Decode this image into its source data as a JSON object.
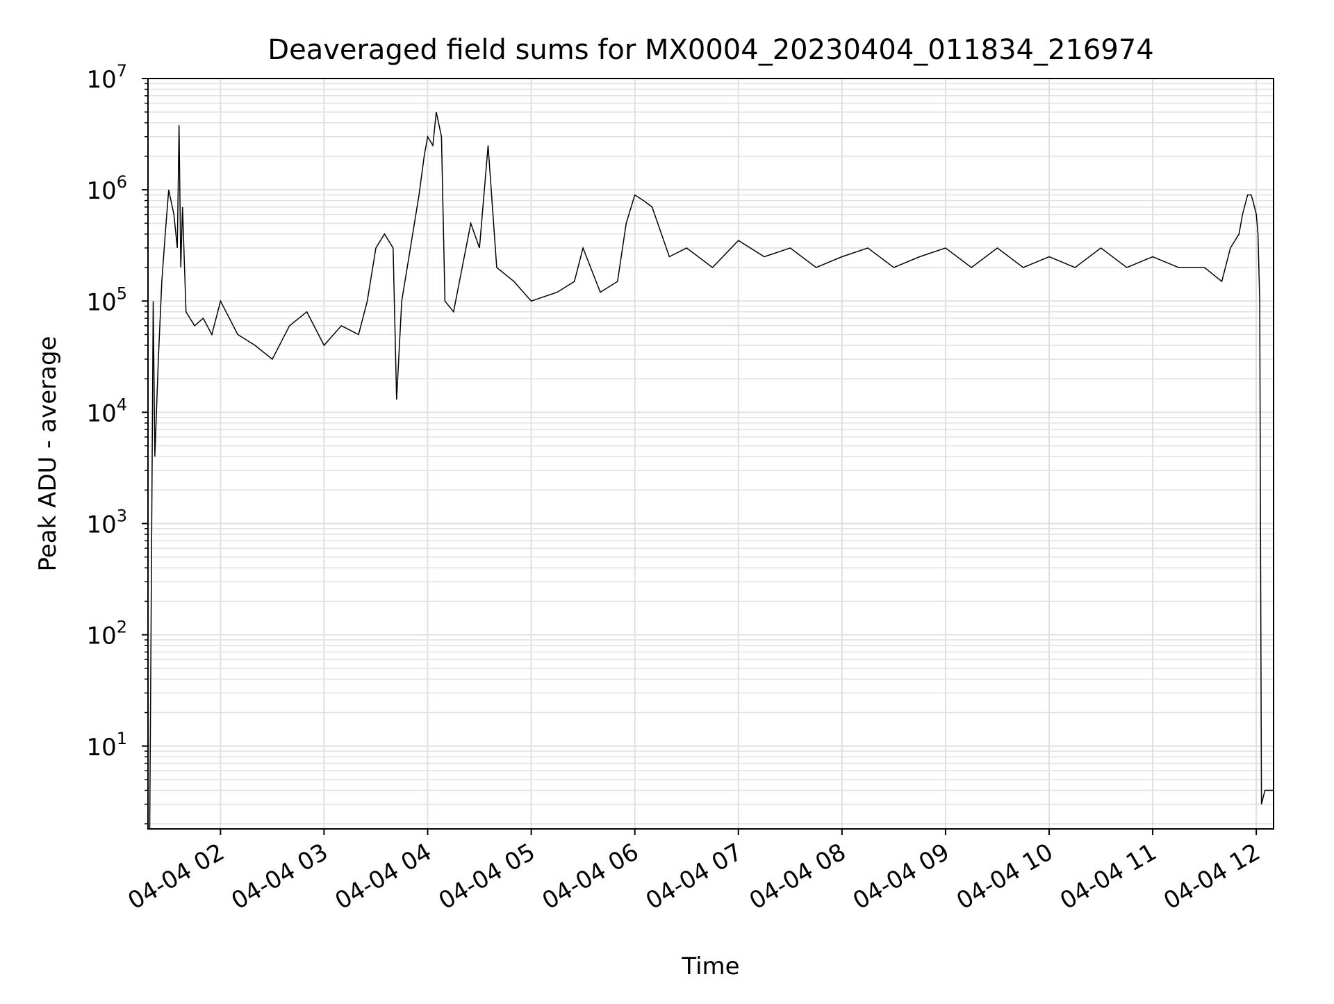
{
  "chart_data": {
    "type": "line",
    "title": "Deaveraged field sums for MX0004_20230404_011834_216974",
    "xlabel": "Time",
    "ylabel": "Peak ADU - average",
    "yscale": "log",
    "ylim": [
      1.8,
      10000000
    ],
    "xlim": [
      "2023-04-04 01:18",
      "2023-04-04 12:10"
    ],
    "x_ticks": [
      "04-04 02",
      "04-04 03",
      "04-04 04",
      "04-04 05",
      "04-04 06",
      "04-04 07",
      "04-04 08",
      "04-04 09",
      "04-04 10",
      "04-04 11",
      "04-04 12"
    ],
    "y_ticks": [
      {
        "value": 10,
        "base": "10",
        "exp": "1"
      },
      {
        "value": 100,
        "base": "10",
        "exp": "2"
      },
      {
        "value": 1000,
        "base": "10",
        "exp": "3"
      },
      {
        "value": 10000,
        "base": "10",
        "exp": "4"
      },
      {
        "value": 100000,
        "base": "10",
        "exp": "5"
      },
      {
        "value": 1000000,
        "base": "10",
        "exp": "6"
      },
      {
        "value": 10000000,
        "base": "10",
        "exp": "7"
      }
    ],
    "grid": true,
    "line_color": "#000000",
    "grid_color": "#e0e0e0",
    "series": [
      {
        "x": [
          "2023-04-04 01:19",
          "2023-04-04 01:21",
          "2023-04-04 01:22",
          "2023-04-04 01:24",
          "2023-04-04 01:26",
          "2023-04-04 01:28",
          "2023-04-04 01:30",
          "2023-04-04 01:33",
          "2023-04-04 01:35",
          "2023-04-04 01:36",
          "2023-04-04 01:37",
          "2023-04-04 01:38",
          "2023-04-04 01:40",
          "2023-04-04 01:45",
          "2023-04-04 01:50",
          "2023-04-04 01:55",
          "2023-04-04 02:00",
          "2023-04-04 02:10",
          "2023-04-04 02:20",
          "2023-04-04 02:30",
          "2023-04-04 02:40",
          "2023-04-04 02:50",
          "2023-04-04 03:00",
          "2023-04-04 03:10",
          "2023-04-04 03:20",
          "2023-04-04 03:25",
          "2023-04-04 03:30",
          "2023-04-04 03:35",
          "2023-04-04 03:40",
          "2023-04-04 03:42",
          "2023-04-04 03:45",
          "2023-04-04 03:50",
          "2023-04-04 03:55",
          "2023-04-04 03:58",
          "2023-04-04 04:00",
          "2023-04-04 04:03",
          "2023-04-04 04:05",
          "2023-04-04 04:08",
          "2023-04-04 04:10",
          "2023-04-04 04:15",
          "2023-04-04 04:20",
          "2023-04-04 04:25",
          "2023-04-04 04:30",
          "2023-04-04 04:35",
          "2023-04-04 04:40",
          "2023-04-04 04:50",
          "2023-04-04 05:00",
          "2023-04-04 05:15",
          "2023-04-04 05:25",
          "2023-04-04 05:30",
          "2023-04-04 05:40",
          "2023-04-04 05:50",
          "2023-04-04 05:55",
          "2023-04-04 06:00",
          "2023-04-04 06:05",
          "2023-04-04 06:10",
          "2023-04-04 06:20",
          "2023-04-04 06:30",
          "2023-04-04 06:45",
          "2023-04-04 07:00",
          "2023-04-04 07:15",
          "2023-04-04 07:30",
          "2023-04-04 07:45",
          "2023-04-04 08:00",
          "2023-04-04 08:15",
          "2023-04-04 08:30",
          "2023-04-04 08:45",
          "2023-04-04 09:00",
          "2023-04-04 09:15",
          "2023-04-04 09:30",
          "2023-04-04 09:45",
          "2023-04-04 10:00",
          "2023-04-04 10:15",
          "2023-04-04 10:30",
          "2023-04-04 10:45",
          "2023-04-04 11:00",
          "2023-04-04 11:15",
          "2023-04-04 11:30",
          "2023-04-04 11:40",
          "2023-04-04 11:45",
          "2023-04-04 11:50",
          "2023-04-04 11:52",
          "2023-04-04 11:55",
          "2023-04-04 11:57",
          "2023-04-04 11:58",
          "2023-04-04 12:00",
          "2023-04-04 12:01",
          "2023-04-04 12:02",
          "2023-04-04 12:03",
          "2023-04-04 12:05",
          "2023-04-04 12:08",
          "2023-04-04 12:10"
        ],
        "y": [
          1.8,
          100000,
          4000,
          30000,
          150000,
          400000,
          1000000,
          600000,
          300000,
          3800000,
          200000,
          700000,
          80000,
          60000,
          70000,
          50000,
          100000,
          50000,
          40000,
          30000,
          60000,
          80000,
          40000,
          60000,
          50000,
          100000,
          300000,
          400000,
          300000,
          13000,
          100000,
          300000,
          900000,
          2000000,
          3000000,
          2500000,
          5000000,
          3000000,
          100000,
          80000,
          200000,
          500000,
          300000,
          2500000,
          200000,
          150000,
          100000,
          120000,
          150000,
          300000,
          120000,
          150000,
          500000,
          900000,
          800000,
          700000,
          250000,
          300000,
          200000,
          350000,
          250000,
          300000,
          200000,
          250000,
          300000,
          200000,
          250000,
          300000,
          200000,
          300000,
          200000,
          250000,
          200000,
          300000,
          200000,
          250000,
          200000,
          200000,
          150000,
          300000,
          400000,
          600000,
          900000,
          900000,
          800000,
          600000,
          400000,
          100000,
          3,
          4,
          4,
          4
        ]
      }
    ]
  }
}
